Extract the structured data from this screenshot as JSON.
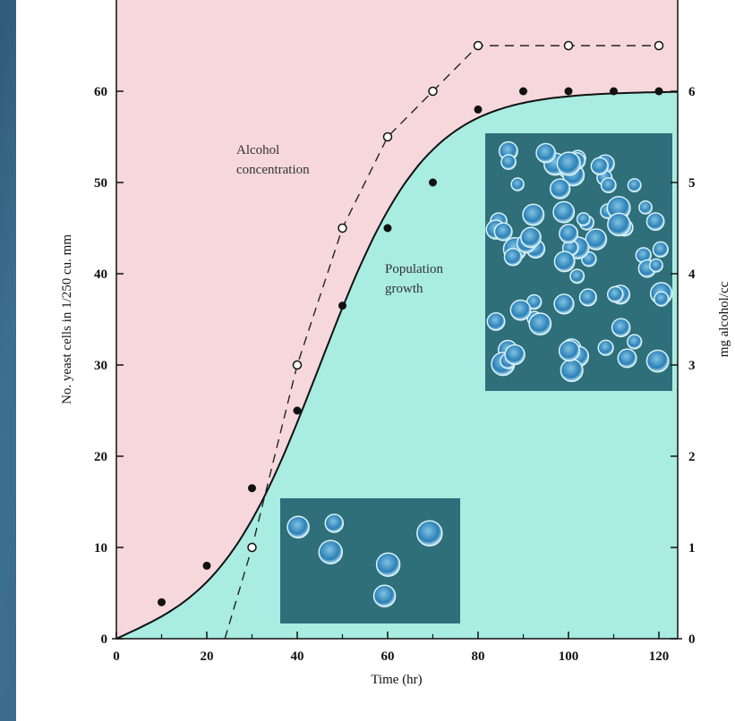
{
  "colors": {
    "slide_background": "#34627f",
    "upper_region": "#f6d8dc",
    "lower_region": "#a9ece1",
    "curve": "#111111",
    "micrograph": "#2f6f7a"
  },
  "chart_data": {
    "type": "line",
    "xlabel": "Time (hr)",
    "ylabel": "No. yeast cells in 1/250 cu. mm",
    "y2label": "mg alcohol/cc",
    "xlim": [
      0,
      125
    ],
    "ylim": [
      0,
      70
    ],
    "y2lim": [
      0,
      7
    ],
    "x_ticks": [
      "0",
      "20",
      "40",
      "60",
      "80",
      "100",
      "120"
    ],
    "y_ticks": [
      "0",
      "10",
      "20",
      "30",
      "40",
      "50",
      "60"
    ],
    "y2_ticks": [
      "0",
      "1",
      "2",
      "3",
      "4",
      "5",
      "6"
    ],
    "grid": false,
    "series": [
      {
        "name": "Population growth",
        "axis": "left",
        "marker": "filled-circle",
        "points": [
          [
            10,
            4
          ],
          [
            20,
            8
          ],
          [
            30,
            16.5
          ],
          [
            40,
            25
          ],
          [
            50,
            36.5
          ],
          [
            60,
            45
          ],
          [
            70,
            50
          ],
          [
            80,
            58
          ],
          [
            90,
            60
          ],
          [
            100,
            60
          ],
          [
            110,
            60
          ],
          [
            120,
            60
          ]
        ]
      },
      {
        "name": "Alcohol concentration",
        "axis": "right",
        "marker": "open-circle",
        "line_style": "dashed",
        "points": [
          [
            30,
            1.0
          ],
          [
            40,
            3.0
          ],
          [
            50,
            4.5
          ],
          [
            60,
            5.5
          ],
          [
            70,
            6.0
          ],
          [
            80,
            6.5
          ],
          [
            100,
            6.5
          ],
          [
            120,
            6.5
          ]
        ]
      }
    ],
    "annotations": [
      {
        "text": [
          "Alcohol",
          "concentration"
        ]
      },
      {
        "text": [
          "Population",
          "growth"
        ]
      }
    ]
  }
}
